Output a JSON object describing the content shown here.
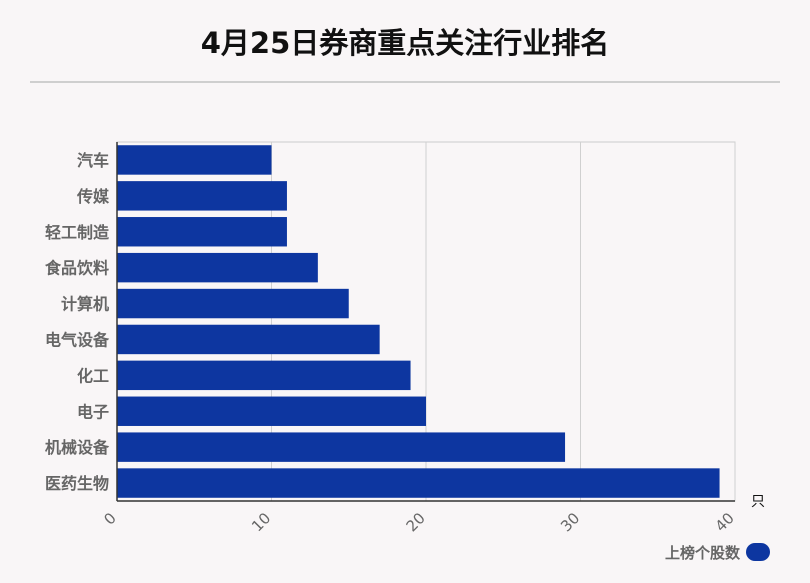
{
  "title": "4月25日券商重点关注行业排名",
  "chart_data": {
    "type": "bar",
    "orientation": "horizontal",
    "title": "4月25日券商重点关注行业排名",
    "categories": [
      "汽车",
      "传媒",
      "轻工制造",
      "食品饮料",
      "计算机",
      "电气设备",
      "化工",
      "电子",
      "机械设备",
      "医药生物"
    ],
    "series": [
      {
        "name": "上榜个股数",
        "values": [
          10,
          11,
          11,
          13,
          15,
          17,
          19,
          20,
          29,
          39
        ]
      }
    ],
    "xlim": [
      0,
      40
    ],
    "xticks": [
      0,
      10,
      20,
      30,
      40
    ],
    "xunit": "只",
    "grid": true,
    "legend_position": "bottom-right",
    "bar_color": "#0d36a0"
  }
}
